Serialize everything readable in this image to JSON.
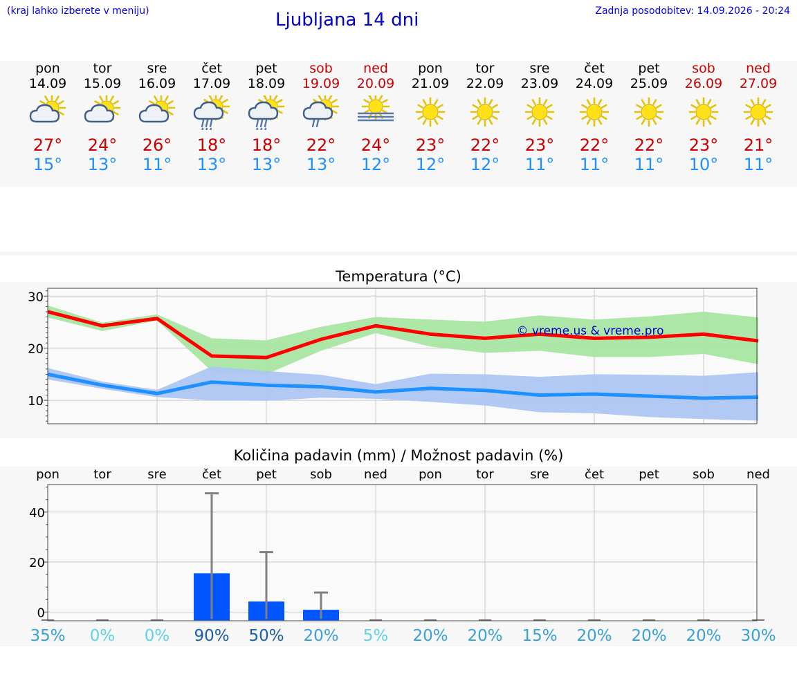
{
  "header": {
    "hint": "(kraj lahko izberete v meniju)",
    "title": "Ljubljana 14 dni",
    "updated": "Zadnja posodobitev: 14.09.2026 - 20:24"
  },
  "colors": {
    "tmax": "#cc0000",
    "tmin": "#1e90ff",
    "weekend": "#cc0000",
    "bar": "#0055ff",
    "errorbar": "#808080",
    "max_line": "#ff0000",
    "min_line": "#1e90ff",
    "max_band": "#a9e6a3",
    "min_band": "#adc6f2",
    "watermark": "#0000cc"
  },
  "days": [
    {
      "name": "pon",
      "date": "14.09",
      "weekend": false,
      "icon": "cloudy-sun-icon",
      "tmax": "27°",
      "tmin": "15°"
    },
    {
      "name": "tor",
      "date": "15.09",
      "weekend": false,
      "icon": "cloudy-sun-icon",
      "tmax": "24°",
      "tmin": "13°"
    },
    {
      "name": "sre",
      "date": "16.09",
      "weekend": false,
      "icon": "cloudy-sun-icon",
      "tmax": "26°",
      "tmin": "11°"
    },
    {
      "name": "čet",
      "date": "17.09",
      "weekend": false,
      "icon": "rain-sun-icon",
      "tmax": "18°",
      "tmin": "13°"
    },
    {
      "name": "pet",
      "date": "18.09",
      "weekend": false,
      "icon": "rain-sun-icon",
      "tmax": "18°",
      "tmin": "13°"
    },
    {
      "name": "sob",
      "date": "19.09",
      "weekend": true,
      "icon": "light-rain-sun-icon",
      "tmax": "22°",
      "tmin": "13°"
    },
    {
      "name": "ned",
      "date": "20.09",
      "weekend": true,
      "icon": "fog-sun-icon",
      "tmax": "24°",
      "tmin": "12°"
    },
    {
      "name": "pon",
      "date": "21.09",
      "weekend": false,
      "icon": "sun-icon",
      "tmax": "23°",
      "tmin": "12°"
    },
    {
      "name": "tor",
      "date": "22.09",
      "weekend": false,
      "icon": "sun-icon",
      "tmax": "22°",
      "tmin": "12°"
    },
    {
      "name": "sre",
      "date": "23.09",
      "weekend": false,
      "icon": "sun-icon",
      "tmax": "23°",
      "tmin": "11°"
    },
    {
      "name": "čet",
      "date": "24.09",
      "weekend": false,
      "icon": "sun-icon",
      "tmax": "22°",
      "tmin": "11°"
    },
    {
      "name": "pet",
      "date": "25.09",
      "weekend": false,
      "icon": "sun-icon",
      "tmax": "22°",
      "tmin": "11°"
    },
    {
      "name": "sob",
      "date": "26.09",
      "weekend": true,
      "icon": "sun-icon",
      "tmax": "23°",
      "tmin": "10°"
    },
    {
      "name": "ned",
      "date": "27.09",
      "weekend": true,
      "icon": "sun-icon",
      "tmax": "21°",
      "tmin": "11°"
    }
  ],
  "chart_data": [
    {
      "type": "line",
      "title": "Temperatura (°C)",
      "x": [
        "14.09",
        "15.09",
        "16.09",
        "17.09",
        "18.09",
        "19.09",
        "20.09",
        "21.09",
        "22.09",
        "23.09",
        "24.09",
        "25.09",
        "26.09",
        "27.09"
      ],
      "ylim": [
        5.5,
        31.5
      ],
      "yticks": [
        10,
        20,
        30
      ],
      "grid": true,
      "watermark": "© vreme.us & vreme.pro",
      "series": [
        {
          "values": [
            27.0,
            24.3,
            25.7,
            18.5,
            18.2,
            21.7,
            24.3,
            22.7,
            21.9,
            22.7,
            21.9,
            22.1,
            22.7,
            21.4
          ],
          "band_low": [
            25.9,
            23.3,
            25.3,
            15.6,
            15.0,
            19.5,
            22.9,
            20.3,
            19.1,
            19.5,
            18.3,
            18.3,
            18.9,
            16.9
          ],
          "band_high": [
            28.2,
            24.9,
            26.5,
            21.9,
            21.5,
            24.1,
            26.0,
            25.5,
            25.1,
            26.3,
            25.5,
            26.1,
            27.0,
            25.9
          ]
        },
        {
          "values": [
            15.0,
            12.9,
            11.3,
            13.5,
            12.9,
            12.6,
            11.6,
            12.3,
            11.9,
            11.0,
            11.2,
            10.8,
            10.4,
            10.6
          ],
          "band_low": [
            14.0,
            12.2,
            10.6,
            10.0,
            9.9,
            10.5,
            10.3,
            9.7,
            9.0,
            7.7,
            7.5,
            6.8,
            6.4,
            6.1
          ],
          "band_high": [
            16.2,
            13.6,
            12.0,
            16.5,
            15.6,
            14.9,
            13.1,
            15.1,
            15.0,
            14.5,
            15.0,
            14.9,
            14.7,
            15.4
          ]
        }
      ]
    },
    {
      "type": "bar",
      "title": "Količina padavin (mm) / Možnost padavin (%)",
      "categories": [
        "pon",
        "tor",
        "sre",
        "čet",
        "pet",
        "sob",
        "ned",
        "pon",
        "tor",
        "sre",
        "čet",
        "pet",
        "sob",
        "ned"
      ],
      "values": [
        0,
        0,
        0,
        15.5,
        4.2,
        0.9,
        0,
        0,
        0,
        0,
        0,
        0,
        0,
        0
      ],
      "error_high": [
        0,
        0,
        0,
        47.5,
        24.0,
        7.8,
        0,
        0,
        0,
        0,
        0,
        0,
        0,
        0
      ],
      "ylim": [
        -3.5,
        51
      ],
      "yticks": [
        0,
        20,
        40
      ],
      "grid": true,
      "probabilities": [
        "35%",
        "0%",
        "0%",
        "90%",
        "50%",
        "20%",
        "5%",
        "20%",
        "20%",
        "15%",
        "20%",
        "20%",
        "20%",
        "30%"
      ],
      "probability_colors": [
        "#3aa0d8",
        "#5ed2e8",
        "#5ed2e8",
        "#1b5fa8",
        "#1b5fa8",
        "#3aa0d8",
        "#5ed2e8",
        "#3aa0d8",
        "#3aa0d8",
        "#3aa0d8",
        "#3aa0d8",
        "#3aa0d8",
        "#3aa0d8",
        "#3aa0d8"
      ]
    }
  ]
}
